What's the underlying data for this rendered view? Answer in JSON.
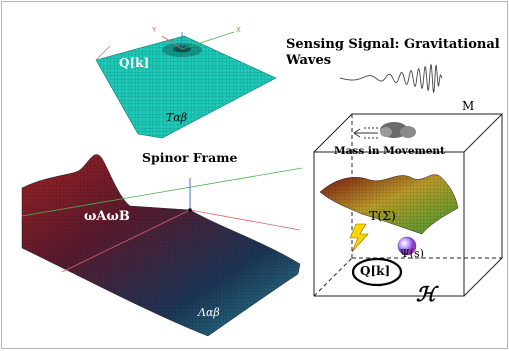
{
  "figure": {
    "labels": {
      "sensing_signal": "Sensing Signal: Gravitational",
      "sensing_signal_line2": "Waves",
      "spinor_frame": "Spinor Frame",
      "manifold": "M",
      "mass_in_movement": "Mass in Movement",
      "qk_top": "Q[k]",
      "t_alpha_beta": "Tαβ",
      "omega": "ωAωB",
      "lambda": "Λαβ",
      "t_sigma": "T(Σ)",
      "psi": "Ψ(s)",
      "qk_bottom": "Q[k]",
      "hilbert": "ℋ"
    },
    "colors": {
      "grid_teal": "#17c3b2",
      "surface_red": "#8b1a1a",
      "surface_navy": "#0d2a4a",
      "surface_green": "#4f9a2a",
      "axis_red": "#e06060",
      "axis_green": "#4caf50",
      "axis_blue": "#4a6fd8",
      "box_line": "#222222",
      "lightning": "#ffd400"
    },
    "icons": [
      "lightning-icon",
      "mass-blob-icon",
      "arrow-left-icon",
      "sphere-icon"
    ]
  }
}
